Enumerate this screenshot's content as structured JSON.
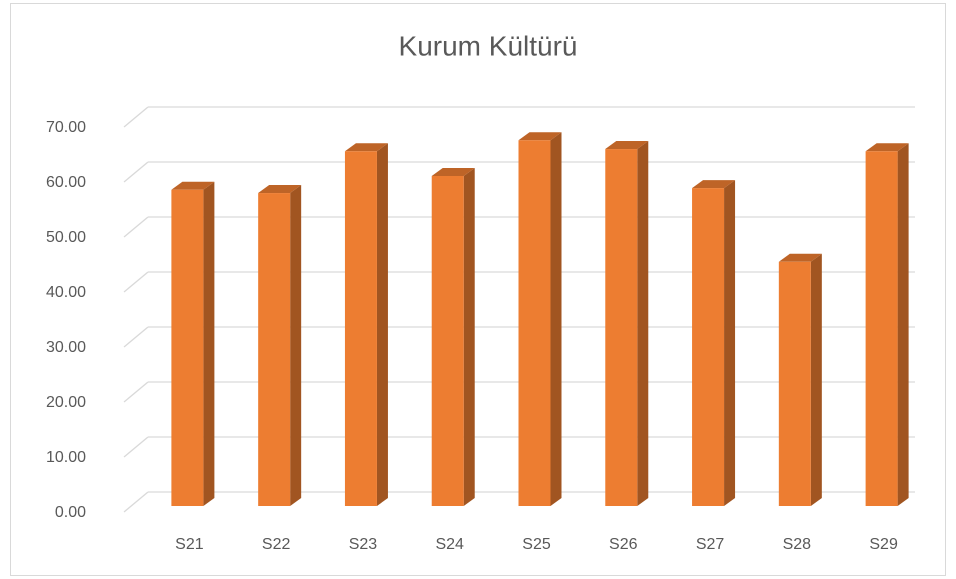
{
  "chart_data": {
    "type": "bar3d",
    "title": "Kurum Kültürü",
    "categories": [
      "S21",
      "S22",
      "S23",
      "S24",
      "S25",
      "S26",
      "S27",
      "S28",
      "S29"
    ],
    "values": [
      57.5,
      56.9,
      64.5,
      60.0,
      66.5,
      64.9,
      57.8,
      44.4,
      64.5
    ],
    "color": "#ed7d31",
    "ylim": [
      0,
      70
    ],
    "yticks": [
      {
        "value": 0,
        "label": "0.00"
      },
      {
        "value": 10,
        "label": "10.00"
      },
      {
        "value": 20,
        "label": "20.00"
      },
      {
        "value": 30,
        "label": "30.00"
      },
      {
        "value": 40,
        "label": "40.00"
      },
      {
        "value": 50,
        "label": "50.00"
      },
      {
        "value": 60,
        "label": "60.00"
      },
      {
        "value": 70,
        "label": "70.00"
      }
    ],
    "grid": true
  }
}
